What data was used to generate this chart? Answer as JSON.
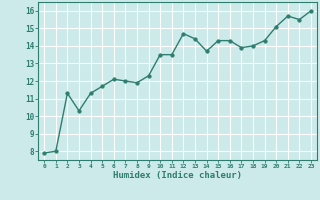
{
  "x": [
    0,
    1,
    2,
    3,
    4,
    5,
    6,
    7,
    8,
    9,
    10,
    11,
    12,
    13,
    14,
    15,
    16,
    17,
    18,
    19,
    20,
    21,
    22,
    23
  ],
  "y": [
    7.9,
    8.0,
    11.3,
    10.3,
    11.3,
    11.7,
    12.1,
    12.0,
    11.9,
    12.3,
    13.5,
    13.5,
    14.7,
    14.4,
    13.7,
    14.3,
    14.3,
    13.9,
    14.0,
    14.3,
    15.1,
    15.7,
    15.5,
    16.0
  ],
  "line_color": "#2e7d6e",
  "marker_color": "#2e7d6e",
  "bg_color": "#cceaea",
  "grid_color": "#ffffff",
  "xlabel": "Humidex (Indice chaleur)",
  "xlabel_color": "#2e7d6e",
  "tick_color": "#2e7d6e",
  "xlim": [
    -0.5,
    23.5
  ],
  "ylim": [
    7.5,
    16.5
  ],
  "yticks": [
    8,
    9,
    10,
    11,
    12,
    13,
    14,
    15,
    16
  ],
  "xticks": [
    0,
    1,
    2,
    3,
    4,
    5,
    6,
    7,
    8,
    9,
    10,
    11,
    12,
    13,
    14,
    15,
    16,
    17,
    18,
    19,
    20,
    21,
    22,
    23
  ],
  "spine_color": "#2e7d6e",
  "marker_size": 2.5,
  "line_width": 1.0
}
